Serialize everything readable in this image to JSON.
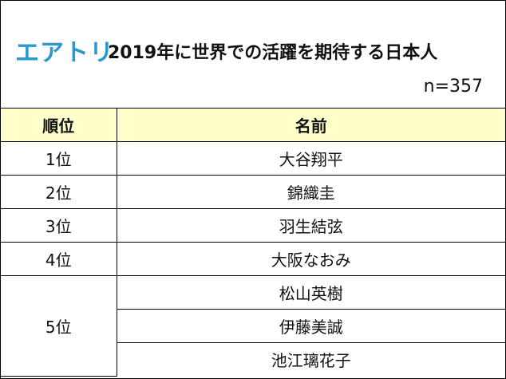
{
  "brand": {
    "logo_text": "エアトリ",
    "logo_color": "#2b98cf"
  },
  "title": "2019年に世界での活躍を期待する日本人",
  "sample_size": "n=357",
  "table": {
    "header_background": "#ffffcc",
    "columns": [
      "順位",
      "名前"
    ],
    "rows": [
      {
        "rank": "1位",
        "name": "大谷翔平"
      },
      {
        "rank": "2位",
        "name": "錦織圭"
      },
      {
        "rank": "3位",
        "name": "羽生結弦"
      },
      {
        "rank": "4位",
        "name": "大阪なおみ"
      },
      {
        "rank": "5位",
        "names": [
          "松山英樹",
          "伊藤美誠",
          "池江璃花子"
        ]
      }
    ]
  }
}
